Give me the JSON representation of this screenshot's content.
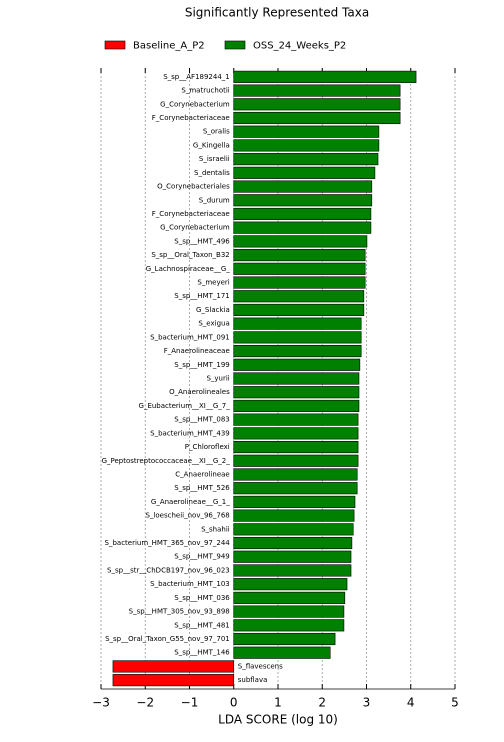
{
  "chart_data": {
    "type": "barh",
    "title": "Significantly Represented Taxa",
    "xlabel": "LDA SCORE (log 10)",
    "categories": [
      "S_sp__AF189244_1",
      "S_matruchotii",
      "G_Corynebacterium",
      "F_Corynebacteriaceae",
      "S_oralis",
      "G_Kingella",
      "S_israelii",
      "S_dentalis",
      "O_Corynebacteriales",
      "S_durum",
      "F_Corynebacteriaceae",
      "G_Corynebacterium",
      "S_sp__HMT_496",
      "S_sp__Oral_Taxon_B32",
      "G_Lachnospiraceae__G_",
      "S_meyeri",
      "S_sp__HMT_171",
      "G_Slackia",
      "S_exigua",
      "S_bacterium_HMT_091",
      "F_Anaerolineaceae",
      "S_sp__HMT_199",
      "S_yurii",
      "O_Anaerolineales",
      "G_Eubacterium__XI__G_7_",
      "S_sp__HMT_083",
      "S_bacterium_HMT_439",
      "P_Chloroflexi",
      "G_Peptostreptococcaceae__XI__G_2_",
      "C_Anaerolineae",
      "S_sp__HMT_526",
      "G_Anaerolineae__G_1_",
      "S_loescheii_nov_96_768",
      "S_shahii",
      "S_bacterium_HMT_365_nov_97_244",
      "S_sp__HMT_949",
      "S_sp__str__ChDCB197_nov_96_023",
      "S_bacterium_HMT_103",
      "S_sp__HMT_036",
      "S_sp__HMT_305_nov_93_898",
      "S_sp__HMT_481",
      "S_sp__Oral_Taxon_G55_nov_97_701",
      "S_sp__HMT_146",
      "S_flavescens",
      "subflava"
    ],
    "series": [
      {
        "name": "Baseline_A_P2",
        "color": "#ff0000",
        "values": [
          null,
          null,
          null,
          null,
          null,
          null,
          null,
          null,
          null,
          null,
          null,
          null,
          null,
          null,
          null,
          null,
          null,
          null,
          null,
          null,
          null,
          null,
          null,
          null,
          null,
          null,
          null,
          null,
          null,
          null,
          null,
          null,
          null,
          null,
          null,
          null,
          null,
          null,
          null,
          null,
          null,
          null,
          null,
          -2.73,
          -2.73
        ]
      },
      {
        "name": "OSS_24_Weeks_P2",
        "color": "#008000",
        "values": [
          4.12,
          3.76,
          3.76,
          3.76,
          3.28,
          3.28,
          3.26,
          3.19,
          3.12,
          3.12,
          3.1,
          3.1,
          3.01,
          2.97,
          2.97,
          2.97,
          2.94,
          2.94,
          2.88,
          2.88,
          2.88,
          2.85,
          2.83,
          2.83,
          2.83,
          2.81,
          2.81,
          2.81,
          2.81,
          2.79,
          2.79,
          2.74,
          2.72,
          2.7,
          2.67,
          2.65,
          2.65,
          2.56,
          2.51,
          2.49,
          2.49,
          2.29,
          2.18,
          null,
          null
        ]
      }
    ],
    "xlim": [
      -3,
      5
    ],
    "xticks": [
      {
        "value": -3,
        "label": "−3"
      },
      {
        "value": -2,
        "label": "−2"
      },
      {
        "value": -1,
        "label": "−1"
      },
      0,
      1,
      2,
      3,
      4,
      5
    ],
    "grid": true,
    "legend": "upper center"
  }
}
